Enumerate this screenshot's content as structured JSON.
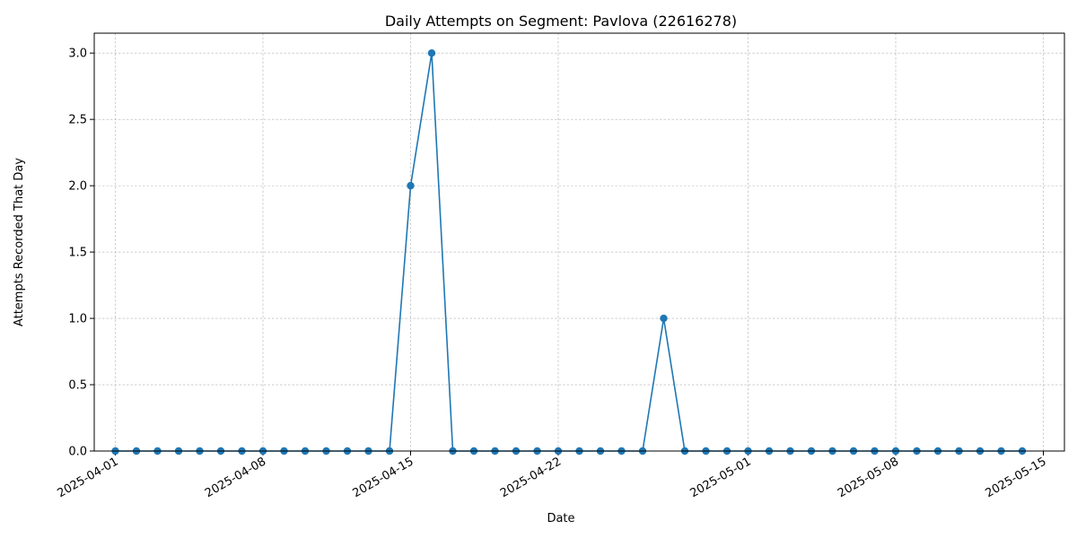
{
  "chart_data": {
    "type": "line",
    "title": "Daily Attempts on Segment: Pavlova (22616278)",
    "xlabel": "Date",
    "ylabel": "Attempts Recorded That Day",
    "x_start": "2025-04-01",
    "x_end": "2025-05-14",
    "xlim": [
      "2025-03-31",
      "2025-05-16"
    ],
    "ylim": [
      0,
      3.15
    ],
    "x_ticks": [
      "2025-04-01",
      "2025-04-08",
      "2025-04-15",
      "2025-04-22",
      "2025-05-01",
      "2025-05-08",
      "2025-05-15"
    ],
    "y_ticks": [
      "0.0",
      "0.5",
      "1.0",
      "1.5",
      "2.0",
      "2.5",
      "3.0"
    ],
    "grid": true,
    "marker": "circle",
    "color": "#1f77b4",
    "series": [
      {
        "values": [
          0,
          0,
          0,
          0,
          0,
          0,
          0,
          0,
          0,
          0,
          0,
          0,
          0,
          0,
          2,
          3,
          0,
          0,
          0,
          0,
          0,
          0,
          0,
          0,
          0,
          0,
          1,
          0,
          0,
          0,
          0,
          0,
          0,
          0,
          0,
          0,
          0,
          0,
          0,
          0,
          0,
          0,
          0,
          0
        ]
      }
    ]
  }
}
